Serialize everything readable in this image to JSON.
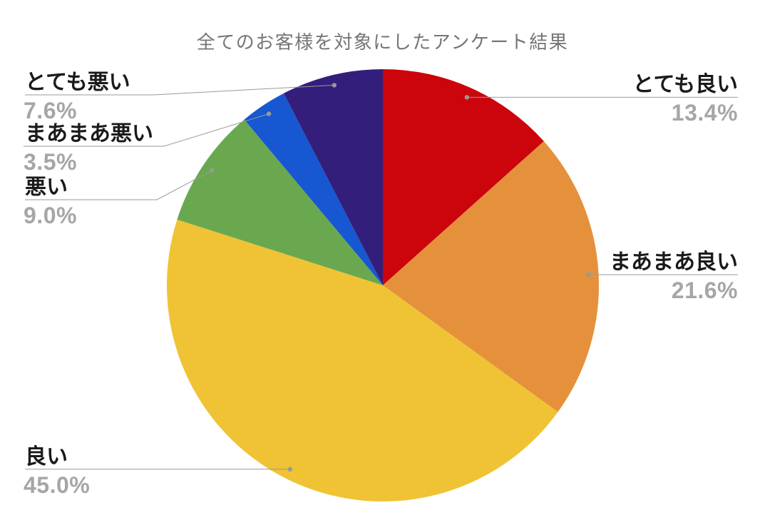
{
  "title": "全てのお客様を対象にしたアンケート結果",
  "chart_data": {
    "type": "pie",
    "title": "全てのお客様を対象にしたアンケート結果",
    "start_angle_deg": 0,
    "direction": "clockwise",
    "legend_position": "callout-labels",
    "series": [
      {
        "label": "とても良い",
        "value": 13.4,
        "display": "13.4%",
        "color": "#cc040c"
      },
      {
        "label": "まあまあ良い",
        "value": 21.6,
        "display": "21.6%",
        "color": "#e5913c"
      },
      {
        "label": "良い",
        "value": 45.0,
        "display": "45.0%",
        "color": "#f0c335"
      },
      {
        "label": "悪い",
        "value": 9.0,
        "display": "9.0%",
        "color": "#6aa84f"
      },
      {
        "label": "まあまあ悪い",
        "value": 3.5,
        "display": "3.5%",
        "color": "#1757d1"
      },
      {
        "label": "とても悪い",
        "value": 7.6,
        "display": "7.6%",
        "color": "#341e7b"
      }
    ],
    "title_color": "#757575",
    "label_text_color": "#1a1a1a",
    "percent_text_color": "#a6a6a6",
    "leader_line_color": "#999999",
    "background_color": "#ffffff"
  }
}
